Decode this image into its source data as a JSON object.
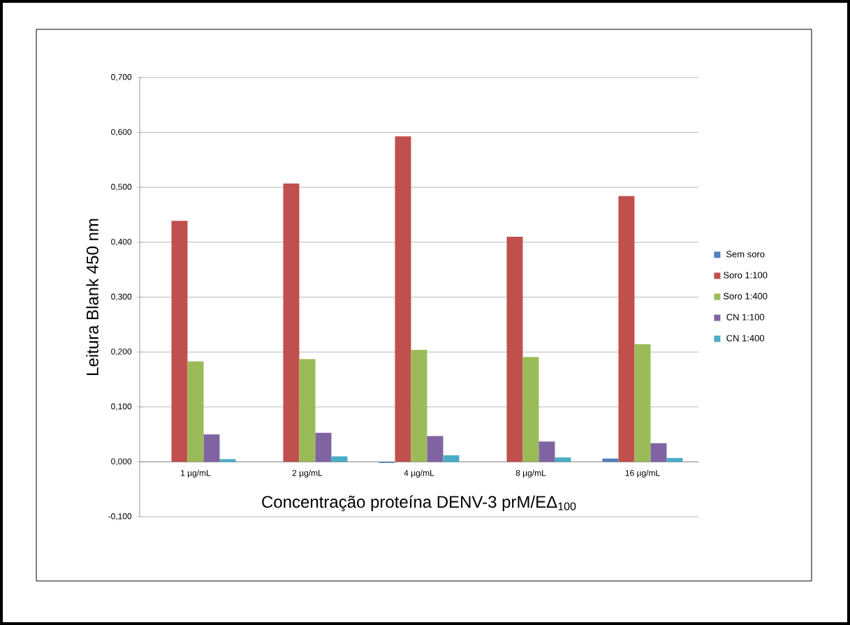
{
  "chart_data": {
    "type": "bar",
    "xlabel": "Concentração proteína DENV-3 prM/EΔ$_{100}$",
    "ylabel": "Leitura Blank 450 nm",
    "categories": [
      "1 µg/mL",
      "2 µg/mL",
      "4 µg/mL",
      "8 µg/mL",
      "16 µg/mL"
    ],
    "series": [
      {
        "name": "Sem soro",
        "color": "#4f81bd",
        "values": [
          0,
          0,
          -0.002,
          0,
          0.006
        ]
      },
      {
        "name": "Soro 1:100",
        "color": "#c0504d",
        "values": [
          0.439,
          0.507,
          0.593,
          0.41,
          0.484
        ]
      },
      {
        "name": "Soro 1:400",
        "color": "#9bbb59",
        "values": [
          0.183,
          0.187,
          0.204,
          0.191,
          0.214
        ]
      },
      {
        "name": "CN 1:100",
        "color": "#8064a2",
        "values": [
          0.05,
          0.053,
          0.047,
          0.037,
          0.034
        ]
      },
      {
        "name": "CN 1:400",
        "color": "#4bacc6",
        "values": [
          0.005,
          0.01,
          0.012,
          0.008,
          0.007
        ]
      }
    ],
    "ylim": [
      -0.1,
      0.7
    ],
    "yticks": [
      {
        "value": -0.1,
        "label": "-0,100"
      },
      {
        "value": 0,
        "label": "0,000"
      },
      {
        "value": 0.1,
        "label": "0,100"
      },
      {
        "value": 0.2,
        "label": "0,200"
      },
      {
        "value": 0.3,
        "label": "0,300"
      },
      {
        "value": 0.4,
        "label": "0,400"
      },
      {
        "value": 0.5,
        "label": "0,500"
      },
      {
        "value": 0.6,
        "label": "0,600"
      },
      {
        "value": 0.7,
        "label": "0,700"
      }
    ],
    "grid": "y",
    "legend": "right"
  }
}
